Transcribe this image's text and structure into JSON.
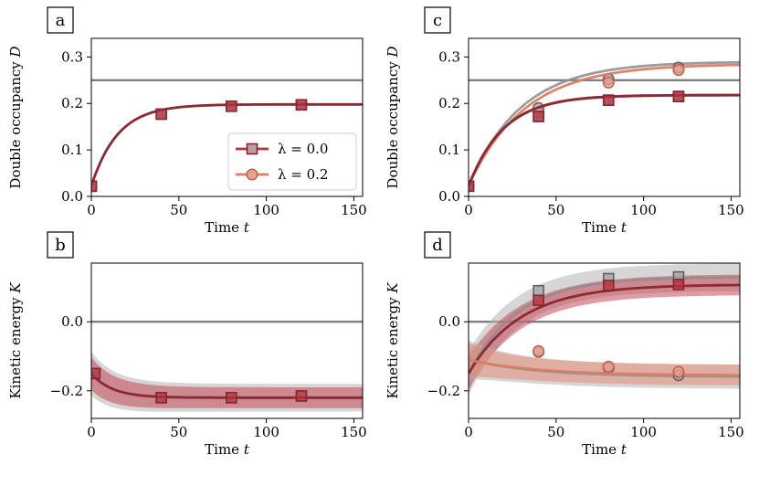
{
  "colors": {
    "lambda0": "#b5303a",
    "lambda0_dark": "#8a2430",
    "lambda02": "#e07a5f",
    "gray": "#8c8c8c",
    "gray_dark": "#606060",
    "band_gray": "#b4b4b4",
    "band_lambda0": "#c44b55",
    "band_lambda02": "#e8836c"
  },
  "legend": {
    "lambda0_label": "λ = 0.0",
    "lambda02_label": "λ = 0.2"
  },
  "chart_data": [
    {
      "panel": "a",
      "type": "line",
      "title": "",
      "xlabel": "Time t",
      "ylabel": "Double occupancy D",
      "xlim": [
        0,
        155
      ],
      "ylim": [
        0.0,
        0.34
      ],
      "xticks": [
        0,
        50,
        100,
        150
      ],
      "yticks": [
        0.0,
        0.1,
        0.2,
        0.3
      ],
      "ytick_labels": [
        "0.0",
        "0.1",
        "0.2",
        "0.3"
      ],
      "reference_line": 0.25,
      "legend_position": "center-right",
      "series": [
        {
          "name": "gray lambda=0.0",
          "style": "gray",
          "marker": "square",
          "model": {
            "d0": 0.022,
            "dinf": 0.198,
            "tau": 15
          },
          "band": 0.002,
          "markers": [
            {
              "x": 0,
              "y": 0.022
            },
            {
              "x": 40,
              "y": 0.177
            },
            {
              "x": 80,
              "y": 0.194
            },
            {
              "x": 120,
              "y": 0.197
            }
          ]
        },
        {
          "name": "lambda=0.0",
          "style": "lambda0",
          "marker": "square",
          "model": {
            "d0": 0.022,
            "dinf": 0.198,
            "tau": 15
          },
          "band": 0.002,
          "markers": [
            {
              "x": 0,
              "y": 0.022
            },
            {
              "x": 40,
              "y": 0.177
            },
            {
              "x": 80,
              "y": 0.194
            },
            {
              "x": 120,
              "y": 0.197
            }
          ]
        }
      ]
    },
    {
      "panel": "b",
      "type": "line",
      "title": "",
      "xlabel": "Time t",
      "ylabel": "Kinetic energy K",
      "xlim": [
        0,
        155
      ],
      "ylim": [
        -0.28,
        0.17
      ],
      "xticks": [
        0,
        50,
        100,
        150
      ],
      "yticks": [
        -0.2,
        0.0
      ],
      "ytick_labels": [
        "−0.2",
        "0.0"
      ],
      "reference_line": 0.0,
      "series": [
        {
          "name": "gray lambda=0.0",
          "style": "gray",
          "marker": "square",
          "model": {
            "d0": -0.15,
            "dinf": -0.22,
            "tau": 12
          },
          "band": 0.04,
          "markers": [
            {
              "x": 2,
              "y": -0.15
            },
            {
              "x": 40,
              "y": -0.22
            },
            {
              "x": 80,
              "y": -0.22
            },
            {
              "x": 120,
              "y": -0.215
            }
          ]
        },
        {
          "name": "lambda=0.0",
          "style": "lambda0",
          "marker": "square",
          "model": {
            "d0": -0.15,
            "dinf": -0.22,
            "tau": 12
          },
          "band": 0.03,
          "markers": [
            {
              "x": 2,
              "y": -0.15
            },
            {
              "x": 40,
              "y": -0.22
            },
            {
              "x": 80,
              "y": -0.22
            },
            {
              "x": 120,
              "y": -0.215
            }
          ]
        }
      ]
    },
    {
      "panel": "c",
      "type": "line",
      "title": "",
      "xlabel": "Time t",
      "ylabel": "Double occupancy D",
      "xlim": [
        0,
        155
      ],
      "ylim": [
        0.0,
        0.34
      ],
      "xticks": [
        0,
        50,
        100,
        150
      ],
      "yticks": [
        0.0,
        0.1,
        0.2,
        0.3
      ],
      "ytick_labels": [
        "0.0",
        "0.1",
        "0.2",
        "0.3"
      ],
      "reference_line": 0.25,
      "series": [
        {
          "name": "gray lambda=0.2",
          "style": "gray",
          "marker": "circle",
          "model": {
            "d0": 0.022,
            "dinf": 0.29,
            "tau": 30
          },
          "band": 0.003,
          "markers": [
            {
              "x": 0,
              "y": 0.022
            },
            {
              "x": 40,
              "y": 0.19
            },
            {
              "x": 80,
              "y": 0.252
            },
            {
              "x": 120,
              "y": 0.277
            }
          ]
        },
        {
          "name": "lambda=0.2",
          "style": "lambda02",
          "marker": "circle",
          "model": {
            "d0": 0.022,
            "dinf": 0.285,
            "tau": 32
          },
          "band": 0.003,
          "markers": [
            {
              "x": 0,
              "y": 0.022
            },
            {
              "x": 40,
              "y": 0.18
            },
            {
              "x": 80,
              "y": 0.245
            },
            {
              "x": 120,
              "y": 0.272
            }
          ]
        },
        {
          "name": "gray lambda=0.0",
          "style": "gray",
          "marker": "square",
          "model": {
            "d0": 0.022,
            "dinf": 0.218,
            "tau": 20
          },
          "band": 0.003,
          "markers": [
            {
              "x": 0,
              "y": 0.022
            },
            {
              "x": 40,
              "y": 0.172
            },
            {
              "x": 80,
              "y": 0.207
            },
            {
              "x": 120,
              "y": 0.215
            }
          ]
        },
        {
          "name": "lambda=0.0",
          "style": "lambda0",
          "marker": "square",
          "model": {
            "d0": 0.022,
            "dinf": 0.218,
            "tau": 20
          },
          "band": 0.003,
          "markers": [
            {
              "x": 0,
              "y": 0.022
            },
            {
              "x": 40,
              "y": 0.172
            },
            {
              "x": 80,
              "y": 0.207
            },
            {
              "x": 120,
              "y": 0.215
            }
          ]
        }
      ]
    },
    {
      "panel": "d",
      "type": "line",
      "title": "",
      "xlabel": "Time t",
      "ylabel": "Kinetic energy K",
      "xlim": [
        0,
        155
      ],
      "ylim": [
        -0.28,
        0.17
      ],
      "xticks": [
        0,
        50,
        100,
        150
      ],
      "yticks": [
        -0.2,
        0.0
      ],
      "ytick_labels": [
        "−0.2",
        "0.0"
      ],
      "reference_line": 0.0,
      "series": [
        {
          "name": "gray lambda=0.0",
          "style": "gray",
          "marker": "square",
          "model": {
            "d0": -0.15,
            "dinf": 0.13,
            "tau": 28
          },
          "band": 0.04,
          "markers": [
            {
              "x": 40,
              "y": 0.09
            },
            {
              "x": 80,
              "y": 0.125
            },
            {
              "x": 120,
              "y": 0.13
            }
          ]
        },
        {
          "name": "lambda=0.0",
          "style": "lambda0",
          "marker": "square",
          "model": {
            "d0": -0.15,
            "dinf": 0.108,
            "tau": 30
          },
          "band": 0.03,
          "markers": [
            {
              "x": 40,
              "y": 0.062
            },
            {
              "x": 80,
              "y": 0.105
            },
            {
              "x": 120,
              "y": 0.108
            }
          ]
        },
        {
          "name": "gray lambda=0.2",
          "style": "gray",
          "marker": "circle",
          "model": {
            "d0": -0.11,
            "dinf": -0.16,
            "tau": 40
          },
          "band": 0.035,
          "markers": [
            {
              "x": 40,
              "y": -0.087
            },
            {
              "x": 80,
              "y": -0.133
            },
            {
              "x": 120,
              "y": -0.155
            }
          ]
        },
        {
          "name": "lambda=0.2",
          "style": "lambda02",
          "marker": "circle",
          "model": {
            "d0": -0.11,
            "dinf": -0.155,
            "tau": 40
          },
          "band": 0.03,
          "markers": [
            {
              "x": 40,
              "y": -0.085
            },
            {
              "x": 80,
              "y": -0.13
            },
            {
              "x": 120,
              "y": -0.145
            }
          ]
        }
      ]
    }
  ]
}
